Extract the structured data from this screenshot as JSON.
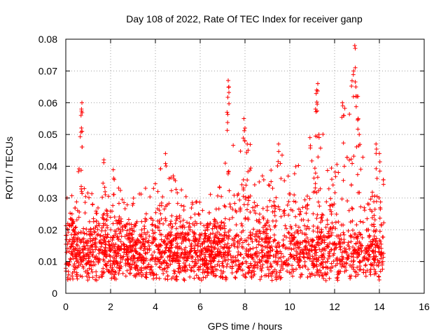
{
  "chart_data": {
    "type": "scatter",
    "title": "Day 108 of 2022, Rate Of TEC Index for receiver ganp",
    "xlabel": "GPS time / hours",
    "ylabel": "ROTI / TECUs",
    "xlim": [
      0,
      16
    ],
    "ylim": [
      0,
      0.08
    ],
    "xticks": [
      0,
      2,
      4,
      6,
      8,
      10,
      12,
      14,
      16
    ],
    "yticks": [
      0,
      0.01,
      0.02,
      0.03,
      0.04,
      0.05,
      0.06,
      0.07,
      0.08
    ],
    "xtick_labels": [
      "0",
      "2",
      "4",
      "6",
      "8",
      "10",
      "12",
      "14",
      "16"
    ],
    "ytick_labels": [
      "0",
      "0.01",
      "0.02",
      "0.03",
      "0.04",
      "0.05",
      "0.06",
      "0.07",
      "0.08"
    ],
    "grid": true,
    "marker": "+",
    "color": "#ff0000",
    "data_range_hours": [
      0,
      14.2
    ],
    "baseline_roti": 0.012,
    "envelope": {
      "x": [
        0,
        0.5,
        0.7,
        1.0,
        1.5,
        2.0,
        2.5,
        3.0,
        3.5,
        4.0,
        4.4,
        5.0,
        5.5,
        6.0,
        6.5,
        7.0,
        7.3,
        7.6,
        8.0,
        8.5,
        9.0,
        9.5,
        10.0,
        10.5,
        11.0,
        11.3,
        11.6,
        12.0,
        12.4,
        12.9,
        13.2,
        13.6,
        14.0,
        14.2
      ],
      "y": [
        0.035,
        0.03,
        0.06,
        0.035,
        0.03,
        0.042,
        0.032,
        0.03,
        0.035,
        0.036,
        0.044,
        0.035,
        0.03,
        0.03,
        0.032,
        0.035,
        0.067,
        0.045,
        0.055,
        0.04,
        0.035,
        0.047,
        0.038,
        0.042,
        0.05,
        0.066,
        0.04,
        0.045,
        0.06,
        0.078,
        0.05,
        0.04,
        0.047,
        0.035
      ]
    },
    "peaks": [
      {
        "x": 0.72,
        "y": 0.06
      },
      {
        "x": 0.7,
        "y": 0.058
      },
      {
        "x": 0.68,
        "y": 0.056
      },
      {
        "x": 1.7,
        "y": 0.042
      },
      {
        "x": 4.45,
        "y": 0.044
      },
      {
        "x": 7.25,
        "y": 0.067
      },
      {
        "x": 7.28,
        "y": 0.065
      },
      {
        "x": 7.2,
        "y": 0.057
      },
      {
        "x": 7.95,
        "y": 0.055
      },
      {
        "x": 8.0,
        "y": 0.052
      },
      {
        "x": 8.1,
        "y": 0.047
      },
      {
        "x": 9.5,
        "y": 0.047
      },
      {
        "x": 10.9,
        "y": 0.049
      },
      {
        "x": 11.25,
        "y": 0.066
      },
      {
        "x": 11.2,
        "y": 0.064
      },
      {
        "x": 11.15,
        "y": 0.058
      },
      {
        "x": 11.3,
        "y": 0.05
      },
      {
        "x": 12.35,
        "y": 0.06
      },
      {
        "x": 12.4,
        "y": 0.056
      },
      {
        "x": 12.9,
        "y": 0.078
      },
      {
        "x": 12.85,
        "y": 0.07
      },
      {
        "x": 12.95,
        "y": 0.065
      },
      {
        "x": 13.0,
        "y": 0.062
      },
      {
        "x": 13.05,
        "y": 0.055
      },
      {
        "x": 13.1,
        "y": 0.05
      },
      {
        "x": 13.85,
        "y": 0.047
      },
      {
        "x": 14.0,
        "y": 0.044
      }
    ]
  }
}
